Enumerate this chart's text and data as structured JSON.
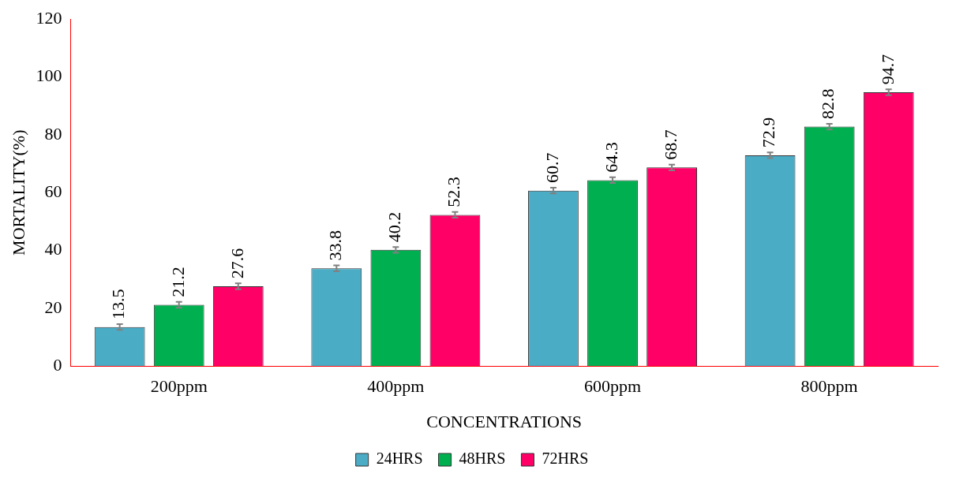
{
  "chart_data": {
    "type": "bar",
    "xlabel": "CONCENTRATIONS",
    "ylabel": "MORTALITY(%)",
    "categories": [
      "200ppm",
      "400ppm",
      "600ppm",
      "800ppm"
    ],
    "series": [
      {
        "name": "24HRS",
        "color": "#4bacc6",
        "values": [
          13.5,
          33.8,
          60.7,
          72.9
        ],
        "errors": [
          1,
          1,
          1,
          1
        ]
      },
      {
        "name": "48HRS",
        "color": "#00b050",
        "values": [
          21.2,
          40.2,
          64.3,
          82.8
        ],
        "errors": [
          1,
          1,
          1,
          1
        ]
      },
      {
        "name": "72HRS",
        "color": "#ff0066",
        "values": [
          27.6,
          52.3,
          68.7,
          94.7
        ],
        "errors": [
          1,
          1,
          1,
          1
        ]
      }
    ],
    "ylim": [
      0,
      120
    ],
    "yticks": [
      0,
      20,
      40,
      60,
      80,
      100,
      120
    ],
    "grid": false,
    "legend": "bottom",
    "data_labels": true
  }
}
